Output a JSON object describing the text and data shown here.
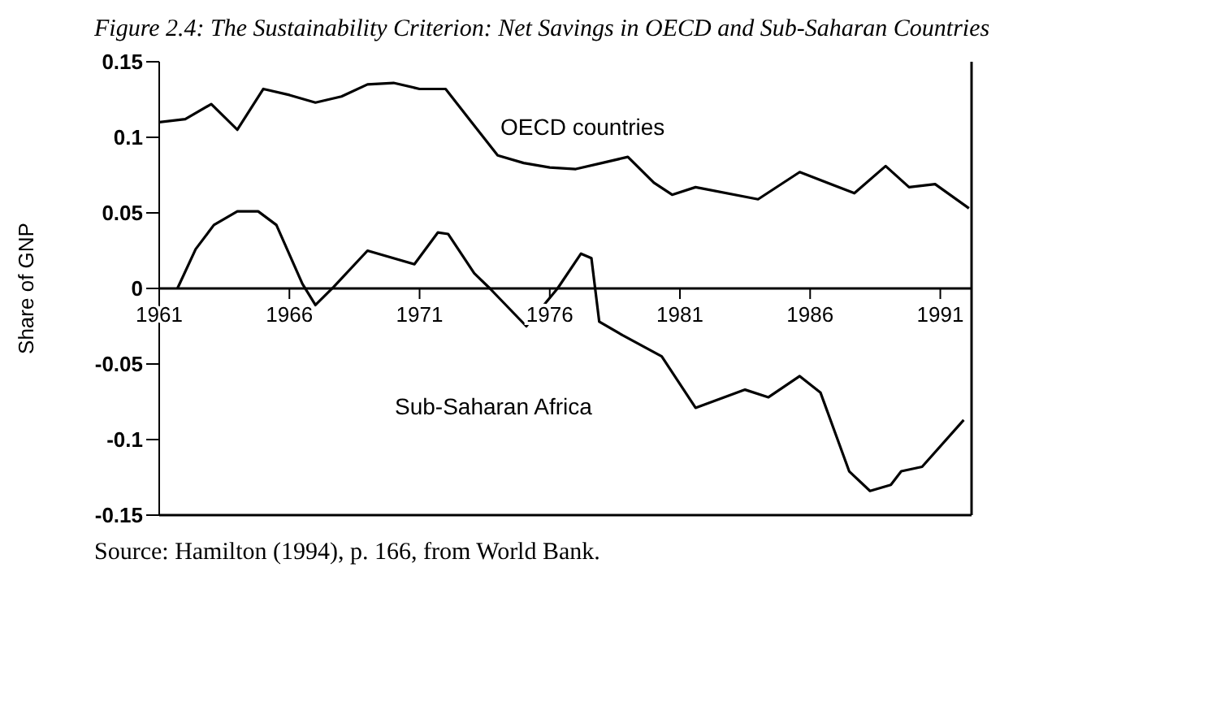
{
  "chart_data": {
    "type": "line",
    "title": "Figure 2.4: The Sustainability Criterion: Net Savings in OECD and Sub-Saharan Countries",
    "ylabel": "Share of GNP",
    "series": [
      {
        "name": "OECD countries",
        "color": "#000000",
        "x": [
          1961,
          1962,
          1963,
          1964,
          1965,
          1966,
          1967,
          1968,
          1969,
          1970,
          1971,
          1972,
          1973,
          1974,
          1975,
          1976,
          1977,
          1978,
          1979,
          1980,
          1980.7,
          1981.6,
          1984,
          1985.6,
          1987.7,
          1988.9,
          1989.8,
          1990.8,
          1992.1
        ],
        "values": [
          0.11,
          0.112,
          0.122,
          0.105,
          0.132,
          0.128,
          0.123,
          0.127,
          0.135,
          0.136,
          0.132,
          0.132,
          0.11,
          0.088,
          0.083,
          0.08,
          0.079,
          0.083,
          0.087,
          0.07,
          0.062,
          0.067,
          0.059,
          0.077,
          0.063,
          0.081,
          0.067,
          0.069,
          0.053
        ]
      },
      {
        "name": "Sub-Saharan Africa",
        "color": "#000000",
        "x": [
          1961.7,
          1962.4,
          1963.1,
          1964,
          1964.8,
          1965.5,
          1966.5,
          1967,
          1967.7,
          1969,
          1970.8,
          1971.7,
          1972.1,
          1973.1,
          1973.7,
          1975.1,
          1976.3,
          1977.2,
          1977.6,
          1977.9,
          1978.8,
          1980.3,
          1981.6,
          1983.5,
          1984.4,
          1985.6,
          1986.4,
          1987.5,
          1988.3,
          1989.1,
          1989.5,
          1990.3,
          1991.9
        ],
        "values": [
          0,
          0.026,
          0.042,
          0.051,
          0.051,
          0.042,
          0.003,
          -0.011,
          0.001,
          0.025,
          0.016,
          0.037,
          0.036,
          0.01,
          0,
          -0.025,
          0,
          0.023,
          0.02,
          -0.022,
          -0.031,
          -0.045,
          -0.079,
          -0.067,
          -0.072,
          -0.058,
          -0.069,
          -0.121,
          -0.134,
          -0.13,
          -0.121,
          -0.118,
          -0.087
        ]
      }
    ],
    "xlim": [
      1961,
      1992.2
    ],
    "xticks": [
      1961,
      1966,
      1971,
      1976,
      1981,
      1986,
      1991
    ],
    "ylim": [
      -0.15,
      0.15
    ],
    "yticks": [
      -0.15,
      -0.1,
      -0.05,
      0,
      0.05,
      0.1,
      0.15
    ],
    "legend": false,
    "marker": "none",
    "line_style": "solid",
    "annotations": [
      "Source: Hamilton (1994), p. 166, from World Bank."
    ]
  }
}
